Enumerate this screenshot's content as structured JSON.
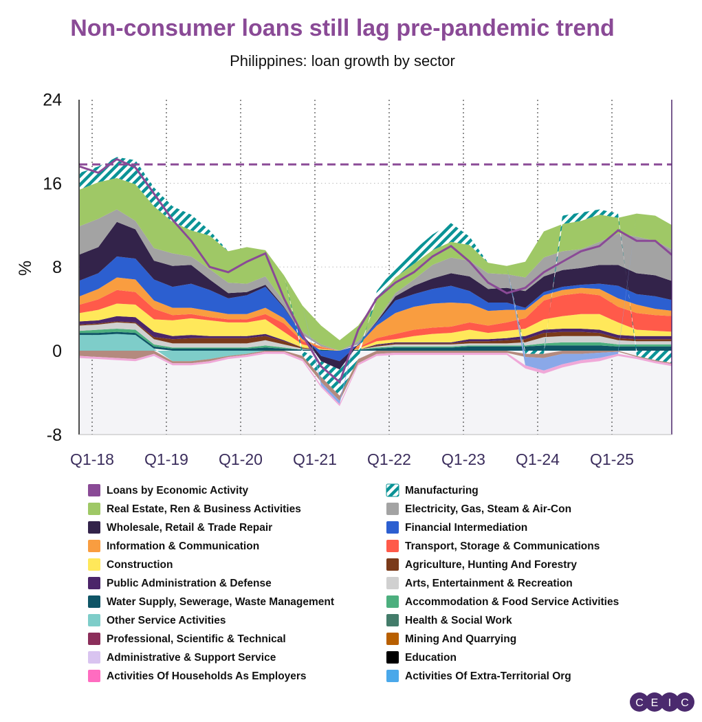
{
  "chart_data": {
    "type": "area",
    "title": "Non-consumer loans still lag pre-pandemic trend",
    "subtitle": "Philippines: loan growth by sector",
    "ylabel": "%",
    "xlabel": "",
    "ylim": [
      -8,
      24
    ],
    "yticks": [
      24,
      16,
      8,
      0,
      -8
    ],
    "xticks": [
      "Q1-18",
      "Q1-19",
      "Q1-20",
      "Q1-21",
      "Q1-22",
      "Q1-23",
      "Q1-24",
      "Q1-25"
    ],
    "x": [
      "2017-11",
      "2018-02",
      "2018-05",
      "2018-08",
      "2018-11",
      "2019-02",
      "2019-05",
      "2019-08",
      "2019-11",
      "2020-02",
      "2020-05",
      "2020-08",
      "2020-11",
      "2021-02",
      "2021-05",
      "2021-08",
      "2021-11",
      "2022-02",
      "2022-05",
      "2022-08",
      "2022-11",
      "2023-02",
      "2023-05",
      "2023-08",
      "2023-11",
      "2024-02",
      "2024-05",
      "2024-08",
      "2024-11",
      "2025-02",
      "2025-05",
      "2025-08",
      "2025-11"
    ],
    "reference_line": {
      "value": 17.8,
      "style": "dashed",
      "color": "#8a4a96"
    },
    "line_series": {
      "name": "Loans by Economic Activity",
      "color": "#8a4a96",
      "values": [
        17.6,
        17.0,
        18.3,
        17.5,
        15.0,
        12.5,
        10.5,
        8.0,
        7.5,
        8.5,
        9.3,
        5.0,
        1.5,
        -1.5,
        -3.0,
        2.0,
        5.0,
        6.5,
        7.5,
        9.0,
        10.0,
        8.5,
        6.5,
        5.5,
        6.0,
        7.5,
        8.5,
        9.5,
        10.0,
        11.5,
        10.5,
        10.5,
        9.0
      ]
    },
    "series": [
      {
        "name": "Other Service Activities",
        "color": "#7ecdc9",
        "values": [
          1.5,
          1.5,
          1.6,
          1.5,
          0.2,
          -1.0,
          -1.0,
          -0.8,
          -0.5,
          -0.3,
          0,
          0,
          0,
          0,
          0,
          0,
          0,
          0,
          0,
          0,
          0,
          0,
          0,
          0,
          0,
          0,
          0,
          0,
          0,
          0,
          0,
          0,
          0
        ]
      },
      {
        "name": "Water Supply, Sewerage, Waste Management",
        "color": "#0f5566",
        "values": [
          0.2,
          0.2,
          0.2,
          0.2,
          0.2,
          0.2,
          0.2,
          0.2,
          0.2,
          0.2,
          0.3,
          0.2,
          0.1,
          0.1,
          0,
          0.1,
          0.2,
          0.3,
          0.3,
          0.3,
          0.3,
          0.4,
          0.4,
          0.4,
          0.4,
          0.5,
          0.5,
          0.5,
          0.5,
          0.4,
          0.4,
          0.4,
          0.4
        ]
      },
      {
        "name": "Accommodation & Food Service Activities",
        "color": "#4caf7e",
        "values": [
          0.2,
          0.3,
          0.3,
          0.3,
          0.2,
          0.1,
          0.1,
          0.1,
          0.1,
          0.1,
          0.2,
          0.1,
          0,
          0,
          0,
          0,
          0.1,
          0.1,
          0.1,
          0.1,
          0.1,
          0.1,
          0.1,
          0.1,
          0.1,
          0.2,
          0.3,
          0.3,
          0.3,
          0.2,
          0.2,
          0.2,
          0.2
        ]
      },
      {
        "name": "Arts, Entertainment & Recreation",
        "color": "#d0d0d0",
        "values": [
          0.5,
          0.5,
          0.6,
          0.6,
          0.5,
          0.4,
          0.4,
          0.4,
          0.4,
          0.4,
          0.5,
          0.3,
          0.1,
          0,
          0,
          0,
          0.1,
          0.2,
          0.2,
          0.2,
          0.2,
          0.2,
          0.2,
          0.2,
          0.3,
          0.6,
          0.6,
          0.6,
          0.6,
          0.4,
          0.3,
          0.3,
          0.3
        ]
      },
      {
        "name": "Agriculture, Hunting And Forestry",
        "color": "#7a3a1a",
        "values": [
          0.1,
          0.1,
          0.1,
          0.1,
          0.2,
          0.4,
          0.5,
          0.5,
          0.5,
          0.5,
          0.4,
          0.3,
          0.1,
          0,
          0,
          0,
          0.1,
          0.1,
          0.1,
          0.1,
          0.1,
          0.2,
          0.2,
          0.3,
          0.3,
          0.4,
          0.4,
          0.4,
          0.3,
          0.2,
          0.2,
          0.2,
          0.2
        ]
      },
      {
        "name": "Public Administration & Defense",
        "color": "#4b2569",
        "values": [
          0.3,
          0.3,
          0.5,
          0.5,
          0.5,
          0.3,
          0.3,
          0.2,
          0.2,
          0.2,
          0.2,
          0.1,
          0,
          0,
          0,
          0,
          0.1,
          0.1,
          0.1,
          0.1,
          0.1,
          0.2,
          0.2,
          0.2,
          0.3,
          0.3,
          0.3,
          0.3,
          0.3,
          0.3,
          0.3,
          0.3,
          0.3
        ]
      },
      {
        "name": "Construction",
        "color": "#ffe85a",
        "values": [
          0.8,
          1.0,
          1.2,
          1.2,
          1.2,
          1.5,
          1.6,
          1.5,
          1.3,
          1.3,
          1.4,
          0.8,
          0.3,
          0.1,
          0,
          0.1,
          0.3,
          0.3,
          0.6,
          0.8,
          0.9,
          0.9,
          0.6,
          0.7,
          0.7,
          1.0,
          1.2,
          1.4,
          1.5,
          1.2,
          0.6,
          0.5,
          0.4
        ]
      },
      {
        "name": "Transport, Storage & Communications",
        "color": "#ff5a4a",
        "values": [
          0.8,
          1.0,
          1.3,
          1.2,
          1.0,
          0.5,
          0.4,
          0.3,
          0.3,
          0.3,
          0.5,
          0.8,
          0.3,
          0.1,
          0,
          0.1,
          0.3,
          0.5,
          0.6,
          0.6,
          0.6,
          0.7,
          0.7,
          0.8,
          1.0,
          1.8,
          2.0,
          2.0,
          1.8,
          1.5,
          1.6,
          1.5,
          1.5
        ]
      },
      {
        "name": "Information & Communication",
        "color": "#f99d40",
        "values": [
          0.8,
          1.0,
          1.2,
          1.2,
          0.8,
          0.7,
          0.6,
          0.6,
          0.5,
          0.5,
          0.6,
          0.5,
          0.2,
          0.1,
          0,
          0.2,
          1.2,
          2.0,
          2.2,
          2.3,
          2.3,
          1.8,
          1.4,
          1.2,
          0.8,
          0.5,
          0.5,
          0.5,
          0.6,
          0.8,
          0.8,
          0.6,
          0.5
        ]
      },
      {
        "name": "Financial Intermediation",
        "color": "#2c5fd0",
        "values": [
          1.5,
          1.5,
          2.0,
          2.0,
          2.0,
          2.0,
          2.3,
          2.0,
          1.5,
          1.8,
          2.0,
          1.0,
          0.4,
          -0.5,
          -1.0,
          0.1,
          0.3,
          1.2,
          1.2,
          1.4,
          1.6,
          1.2,
          0.8,
          0.7,
          0.2,
          0.3,
          0.3,
          0.3,
          0.5,
          1.2,
          1.0,
          1.2,
          1.0
        ]
      },
      {
        "name": "Wholesale, Retail & Trade Repair",
        "color": "#33234a",
        "values": [
          2.5,
          2.5,
          3.3,
          2.8,
          1.8,
          2.0,
          1.8,
          1.0,
          0.5,
          0.3,
          0.2,
          0.1,
          0,
          -0.5,
          -0.8,
          0,
          0.1,
          0.4,
          0.8,
          1.0,
          1.2,
          1.4,
          1.3,
          1.4,
          1.6,
          1.5,
          1.6,
          1.6,
          1.8,
          2.0,
          2.0,
          2.0,
          1.8
        ]
      },
      {
        "name": "Electricity, Gas, Steam & Air-Con",
        "color": "#a3a3a3",
        "values": [
          2.7,
          2.7,
          1.2,
          0.8,
          1.2,
          1.2,
          0.8,
          1.0,
          1.0,
          0.8,
          0.8,
          0.5,
          0.3,
          0.2,
          0,
          0.3,
          0.1,
          0.3,
          0.6,
          1.3,
          1.5,
          1.5,
          1.5,
          1.3,
          1.3,
          1.8,
          1.8,
          1.8,
          2.2,
          3.0,
          3.5,
          3.3,
          3.0
        ]
      },
      {
        "name": "Real Estate, Ren & Business Activities",
        "color": "#9fc866",
        "values": [
          3.5,
          3.5,
          3.0,
          3.5,
          4.0,
          3.0,
          2.5,
          3.2,
          3.0,
          3.5,
          2.5,
          2.5,
          2.5,
          1.8,
          1.0,
          1.5,
          2.0,
          1.5,
          1.5,
          1.4,
          1.5,
          1.5,
          1.0,
          0.8,
          1.5,
          2.5,
          2.6,
          2.7,
          2.6,
          1.5,
          2.2,
          2.4,
          2.3
        ]
      },
      {
        "name": "Manufacturing",
        "color": "#0a9396",
        "hatched": true,
        "values": [
          1.6,
          1.5,
          2.0,
          2.3,
          1.8,
          1.5,
          1.5,
          0.5,
          0,
          0,
          0,
          0,
          -0.5,
          -1.5,
          -2.5,
          -0.8,
          0.8,
          1.0,
          1.3,
          1.5,
          1.8,
          0.8,
          0,
          0,
          -0.3,
          -0.3,
          0.8,
          0.8,
          0.5,
          0.4,
          -0.5,
          -0.9,
          -1.2
        ]
      },
      {
        "name": "Professional, Scientific & Technical",
        "color": "#b48a7e",
        "values": [
          -0.5,
          -0.6,
          -0.7,
          -0.8,
          -0.3,
          -0.2,
          -0.2,
          -0.2,
          -0.1,
          -0.1,
          -0.1,
          -0.1,
          -0.3,
          -0.5,
          -0.5,
          -0.4,
          -0.3,
          -0.2,
          -0.2,
          -0.2,
          -0.2,
          -0.2,
          -0.2,
          -0.2,
          -0.3,
          -0.4,
          -0.3,
          -0.3,
          -0.2,
          -0.1,
          -0.1,
          -0.1,
          -0.1
        ]
      },
      {
        "name": "Activities Of Extra-Territorial Org",
        "color": "#8aa8e8",
        "values": [
          0,
          0,
          0,
          0,
          0,
          0,
          0,
          0,
          0,
          0,
          0,
          0,
          0,
          -0.3,
          -0.3,
          0,
          0,
          0,
          0,
          0,
          0,
          0,
          0,
          0,
          -0.8,
          -1.2,
          -1.0,
          -0.6,
          -0.5,
          -0.2,
          0,
          0,
          0
        ]
      },
      {
        "name": "Activities Of Households As Employers",
        "color": "#f0a8d8",
        "values": [
          -0.2,
          -0.2,
          -0.2,
          -0.2,
          -0.2,
          -0.2,
          -0.2,
          -0.2,
          -0.2,
          -0.2,
          -0.2,
          -0.2,
          -0.2,
          -0.2,
          -0.2,
          -0.2,
          -0.2,
          -0.2,
          -0.2,
          -0.2,
          -0.2,
          -0.2,
          -0.2,
          -0.2,
          -0.3,
          -0.3,
          -0.3,
          -0.3,
          -0.3,
          -0.2,
          -0.2,
          -0.2,
          -0.2
        ]
      }
    ],
    "legend": [
      {
        "label": "Loans by Economic Activity",
        "color": "#8a4a96"
      },
      {
        "label": "Manufacturing",
        "color": "#0a9396",
        "hatched": true
      },
      {
        "label": "Real Estate, Ren & Business Activities",
        "color": "#9fc866"
      },
      {
        "label": "Electricity, Gas, Steam & Air-Con",
        "color": "#a3a3a3"
      },
      {
        "label": "Wholesale, Retail & Trade Repair",
        "color": "#33234a"
      },
      {
        "label": "Financial Intermediation",
        "color": "#2c5fd0"
      },
      {
        "label": "Information & Communication",
        "color": "#f99d40"
      },
      {
        "label": "Transport, Storage & Communications",
        "color": "#ff5a4a"
      },
      {
        "label": "Construction",
        "color": "#ffe85a"
      },
      {
        "label": "Agriculture, Hunting And Forestry",
        "color": "#7a3a1a"
      },
      {
        "label": "Public Administration & Defense",
        "color": "#4b2569"
      },
      {
        "label": "Arts, Entertainment & Recreation",
        "color": "#d0d0d0"
      },
      {
        "label": "Water Supply, Sewerage, Waste Management",
        "color": "#0f5566"
      },
      {
        "label": "Accommodation & Food Service Activities",
        "color": "#4caf7e"
      },
      {
        "label": "Other Service Activities",
        "color": "#7ecdc9"
      },
      {
        "label": "Health & Social Work",
        "color": "#437c6a"
      },
      {
        "label": "Professional, Scientific & Technical",
        "color": "#8b2e5a"
      },
      {
        "label": "Mining And Quarrying",
        "color": "#b85f00"
      },
      {
        "label": "Administrative & Support Service",
        "color": "#d9c4f0"
      },
      {
        "label": "Education",
        "color": "#000000"
      },
      {
        "label": "Activities Of Households As Employers",
        "color": "#ff6cc0"
      },
      {
        "label": "Activities Of Extra-Territorial Org",
        "color": "#4aa8ea"
      }
    ],
    "legend_placement": "bottom",
    "grid": true
  },
  "logo": {
    "letters": [
      "C",
      "E",
      "I",
      "C"
    ],
    "color": "#4b2a6e"
  }
}
